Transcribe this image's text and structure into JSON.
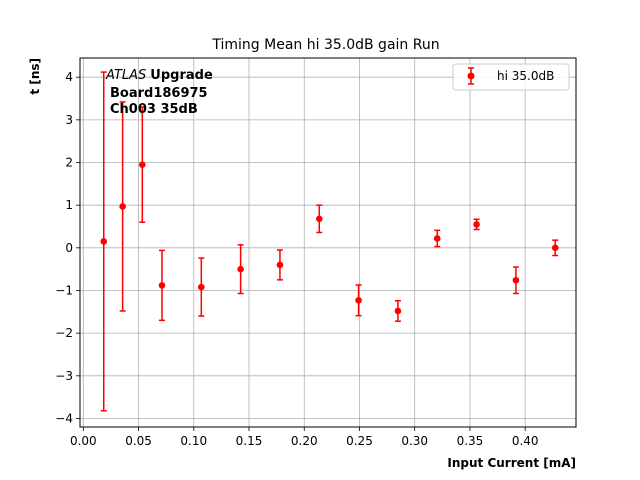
{
  "chart_data": {
    "type": "scatter",
    "title": "Timing Mean hi 35.0dB gain Run",
    "xlabel": "Input Current [mA]",
    "ylabel": "t [ns]",
    "xlim": [
      -0.003,
      0.446
    ],
    "ylim": [
      -4.2,
      4.45
    ],
    "x_ticks": [
      0.0,
      0.05,
      0.1,
      0.15,
      0.2,
      0.25,
      0.3,
      0.35,
      0.4
    ],
    "x_tick_labels": [
      "0.00",
      "0.05",
      "0.10",
      "0.15",
      "0.20",
      "0.25",
      "0.30",
      "0.35",
      "0.40"
    ],
    "y_ticks": [
      -4,
      -3,
      -2,
      -1,
      0,
      1,
      2,
      3,
      4
    ],
    "y_tick_labels": [
      "−4",
      "−3",
      "−2",
      "−1",
      "0",
      "1",
      "2",
      "3",
      "4"
    ],
    "grid": true,
    "legend_position": "top-right",
    "annotation": {
      "italic": "ATLAS",
      "bold": "Upgrade",
      "lines": [
        "Board186975",
        "Ch003 35dB"
      ]
    },
    "series": [
      {
        "name": "hi 35.0dB",
        "color": "#ff0000",
        "points": [
          {
            "x": 0.0185,
            "y": 0.15,
            "err": 3.97
          },
          {
            "x": 0.0356,
            "y": 0.97,
            "err": 2.45
          },
          {
            "x": 0.0534,
            "y": 1.95,
            "err": 1.35
          },
          {
            "x": 0.0712,
            "y": -0.88,
            "err": 0.82
          },
          {
            "x": 0.1068,
            "y": -0.92,
            "err": 0.68
          },
          {
            "x": 0.1424,
            "y": -0.5,
            "err": 0.57
          },
          {
            "x": 0.178,
            "y": -0.4,
            "err": 0.35
          },
          {
            "x": 0.2136,
            "y": 0.68,
            "err": 0.32
          },
          {
            "x": 0.2492,
            "y": -1.23,
            "err": 0.36
          },
          {
            "x": 0.2848,
            "y": -1.48,
            "err": 0.24
          },
          {
            "x": 0.3204,
            "y": 0.22,
            "err": 0.19
          },
          {
            "x": 0.356,
            "y": 0.55,
            "err": 0.12
          },
          {
            "x": 0.3916,
            "y": -0.76,
            "err": 0.31
          },
          {
            "x": 0.4272,
            "y": 0.0,
            "err": 0.18
          }
        ]
      }
    ]
  }
}
